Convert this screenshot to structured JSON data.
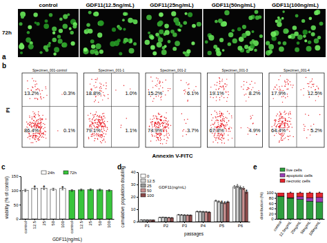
{
  "panel_a": {
    "label": "a",
    "row_label": "72h",
    "titles": [
      "control",
      "GDF11(12.5ng/mL)",
      "GDF11(25ng/mL)",
      "GDF11(50ng/mL)",
      "GDF11(100ng/mL)"
    ]
  },
  "panel_b": {
    "label": "b",
    "x_label": "Annexin V-FITC",
    "y_label": "PI",
    "plots": [
      {
        "title": "Specimen_001-control",
        "values": [
          13.2,
          0.3,
          86.4,
          0.1
        ],
        "value_labels": [
          "13.2%",
          "0.3%",
          "86.4%",
          "0.1%"
        ]
      },
      {
        "title": "Specimen_001-1",
        "values": [
          18.8,
          1.0,
          79.1,
          1.1
        ],
        "value_labels": [
          "18.8%",
          "1.0%",
          "79.1%",
          "1.1%"
        ]
      },
      {
        "title": "Specimen_001-2",
        "values": [
          15.2,
          6.1,
          74.9,
          3.7
        ],
        "value_labels": [
          "15.2%",
          "6.1%",
          "74.9%",
          "3.7%"
        ]
      },
      {
        "title": "Specimen_001-3",
        "values": [
          19.1,
          8.2,
          67.8,
          4.9
        ],
        "value_labels": [
          "19.1%",
          "8.2%",
          "67.8%",
          "4.9%"
        ]
      },
      {
        "title": "Specimen_001-4",
        "values": [
          17.9,
          12.5,
          64.4,
          5.2
        ],
        "value_labels": [
          "17.9%",
          "12.5%",
          "64.4%",
          "5.2%"
        ]
      }
    ]
  },
  "chart_data": [
    {
      "type": "bar",
      "panel_label": "c",
      "y_label": "viability (% of control)",
      "x_label": "GDF11(ng/mL)",
      "categories": [
        "control",
        "12.5",
        "25",
        "50",
        "100",
        "control",
        "12.5",
        "25",
        "50",
        "100"
      ],
      "series": [
        {
          "name": "24h",
          "color": "#ffffff",
          "values": [
            100,
            108,
            108,
            104,
            107,
            null,
            null,
            null,
            null,
            null
          ],
          "errors": [
            4,
            5,
            5,
            4,
            5,
            null,
            null,
            null,
            null,
            null
          ]
        },
        {
          "name": "72h",
          "color": "#39c43c",
          "values": [
            null,
            null,
            null,
            null,
            null,
            100,
            102,
            103,
            102,
            100
          ],
          "errors": [
            null,
            null,
            null,
            null,
            null,
            3,
            3,
            3,
            3,
            3
          ]
        }
      ],
      "ylim": [
        0,
        150
      ],
      "yticks": [
        0,
        50,
        100,
        150
      ],
      "legend": "top",
      "annotations": [
        {
          "text": "*",
          "category": 1
        },
        {
          "text": "*",
          "category": 2
        },
        {
          "text": "*",
          "category": 4
        }
      ]
    },
    {
      "type": "bar",
      "panel_label": "d",
      "y_label": "cumulative population doubling",
      "x_label": "passages",
      "categories": [
        "P1",
        "P2",
        "P3",
        "P4",
        "P5",
        "P6"
      ],
      "legend_title": "GDF11(ng/mL)",
      "legend": "top-left",
      "series": [
        {
          "name": "0",
          "color": "#ffffff",
          "values": [
            1.4,
            3.4,
            5.6,
            8.2,
            16.8,
            28.0
          ],
          "errors": [
            0.15,
            0.2,
            0.3,
            0.4,
            0.6,
            1.2
          ]
        },
        {
          "name": "12.5",
          "color": "#d4d4d4",
          "values": [
            1.4,
            3.5,
            5.5,
            8.1,
            16.2,
            28.8
          ],
          "errors": [
            0.15,
            0.2,
            0.3,
            0.4,
            0.6,
            1.2
          ]
        },
        {
          "name": "25",
          "color": "#9a9a9a",
          "values": [
            1.4,
            3.4,
            5.4,
            8.0,
            15.4,
            27.6
          ],
          "errors": [
            0.15,
            0.2,
            0.3,
            0.4,
            0.6,
            1.2
          ]
        },
        {
          "name": "50",
          "color": "#c98f8f",
          "values": [
            1.3,
            3.3,
            5.3,
            7.9,
            15.0,
            27.0
          ],
          "errors": [
            0.15,
            0.2,
            0.3,
            0.4,
            0.6,
            1.2
          ]
        },
        {
          "name": "100",
          "color": "#8b4a4a",
          "values": [
            1.3,
            3.2,
            5.2,
            7.7,
            16.0,
            24.0
          ],
          "errors": [
            0.15,
            0.2,
            0.3,
            0.4,
            0.6,
            1.2
          ]
        }
      ],
      "ylim": [
        0,
        40
      ],
      "yticks": [
        0,
        10,
        20,
        30,
        40
      ],
      "annotations": [
        {
          "text": "*",
          "category": 4,
          "series": 2
        },
        {
          "text": "*",
          "category": 4,
          "series": 3
        },
        {
          "text": "*",
          "category": 5,
          "series": 4
        }
      ]
    },
    {
      "type": "bar",
      "stacked": true,
      "panel_label": "e",
      "y_label": "distribution (%)",
      "categories": [
        "control",
        "12.5ng/mL",
        "25ng/mL",
        "50ng/mL",
        "100ng/mL"
      ],
      "series": [
        {
          "name": "live cells",
          "color": "#2e9e3e",
          "values": [
            86.4,
            79.1,
            74.9,
            67.8,
            64.4
          ]
        },
        {
          "name": "apoptotic cells",
          "color": "#9b3fb5",
          "values": [
            0.4,
            2.1,
            9.8,
            13.1,
            17.7
          ]
        },
        {
          "name": "necrotic cells",
          "color": "#e3262e",
          "values": [
            13.2,
            18.8,
            15.2,
            19.1,
            17.9
          ]
        }
      ],
      "ylim": [
        0,
        100
      ],
      "yticks": [
        0,
        20,
        40,
        60,
        80,
        100
      ],
      "legend": "top",
      "annotations": [
        {
          "text": "*",
          "category": 1
        },
        {
          "text": "*",
          "category": 2
        },
        {
          "text": "*",
          "category": 3
        },
        {
          "text": "*",
          "category": 4
        }
      ]
    }
  ]
}
